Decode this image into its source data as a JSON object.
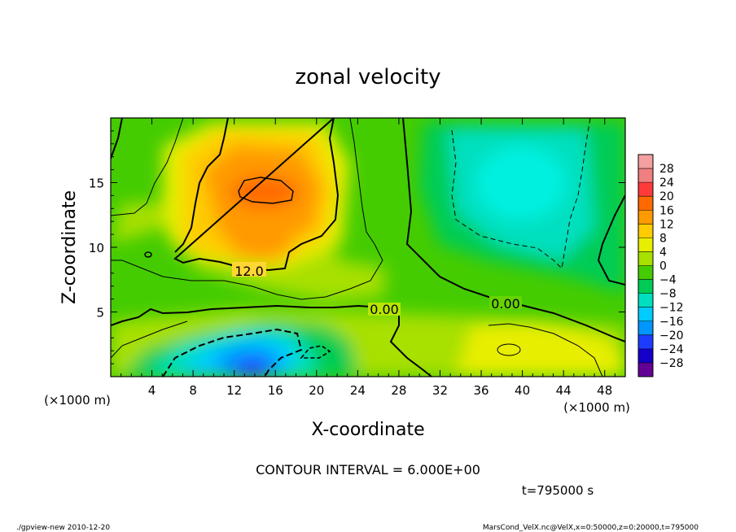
{
  "chart_data": {
    "type": "heatmap",
    "title": "zonal velocity",
    "xlabel": "X-coordinate",
    "ylabel": "Z-coordinate",
    "x_unit": "(×1000 m)",
    "y_unit": "(×1000 m)",
    "xlim": [
      0,
      50
    ],
    "ylim": [
      0,
      20
    ],
    "x_ticks": [
      4,
      8,
      12,
      16,
      20,
      24,
      28,
      32,
      36,
      40,
      44,
      48
    ],
    "y_ticks": [
      5,
      10,
      15
    ],
    "colorbar": {
      "levels": [
        28,
        24,
        20,
        16,
        12,
        8,
        4,
        0,
        -4,
        -8,
        -12,
        -16,
        -20,
        -24,
        -28
      ],
      "colors": [
        "#f08080",
        "#ff3a3a",
        "#ff6a00",
        "#ff9a00",
        "#ffcc00",
        "#e8ee00",
        "#a8e000",
        "#44cc00",
        "#00cc55",
        "#00e0c0",
        "#00ccff",
        "#0096ff",
        "#1e3cff",
        "#1400c8",
        "#640096"
      ]
    },
    "contour_labels": [
      {
        "text": "12.0",
        "x": 13.5,
        "z": 8.4
      },
      {
        "text": "0.00",
        "x": 26.0,
        "z": 5.1
      },
      {
        "text": "0.00",
        "x": 38.2,
        "z": 5.5
      }
    ],
    "field_features": [
      {
        "name": "westerly jet maximum",
        "x": 16,
        "z": 14.5,
        "value": 20
      },
      {
        "name": "easterly near-surface minimum",
        "x": 13,
        "z": 1.5,
        "value": -14
      },
      {
        "name": "upper easterly region",
        "x": 40,
        "z": 15,
        "value": -8
      }
    ]
  },
  "annotations": {
    "contour_interval": "CONTOUR INTERVAL = 6.000E+00",
    "time": "t=795000 s",
    "footer_left": "./gpview-new  2010-12-20",
    "footer_right": "MarsCond_VelX.nc@VelX,x=0:50000,z=0:20000,t=795000"
  }
}
